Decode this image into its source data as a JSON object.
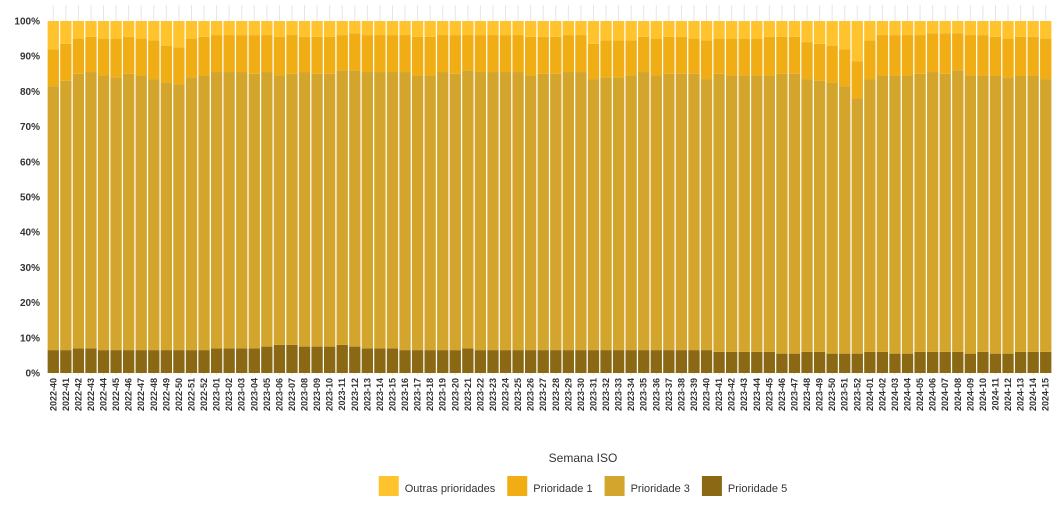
{
  "chart_data": {
    "type": "bar",
    "stacked": true,
    "normalized": true,
    "title": "",
    "xlabel": "Semana ISO",
    "ylabel": "",
    "ylim": [
      0,
      100
    ],
    "y_ticks": [
      "0%",
      "10%",
      "20%",
      "30%",
      "40%",
      "50%",
      "60%",
      "70%",
      "80%",
      "90%",
      "100%"
    ],
    "grid": "vertical",
    "legend_position": "bottom",
    "categories": [
      "2022-40",
      "2022-41",
      "2022-42",
      "2022-43",
      "2022-44",
      "2022-45",
      "2022-46",
      "2022-47",
      "2022-48",
      "2022-49",
      "2022-50",
      "2022-51",
      "2022-52",
      "2023-01",
      "2023-02",
      "2023-03",
      "2023-04",
      "2023-05",
      "2023-06",
      "2023-07",
      "2023-08",
      "2023-09",
      "2023-10",
      "2023-11",
      "2023-12",
      "2023-13",
      "2023-14",
      "2023-15",
      "2023-16",
      "2023-17",
      "2023-18",
      "2023-19",
      "2023-20",
      "2023-21",
      "2023-22",
      "2023-23",
      "2023-24",
      "2023-25",
      "2023-26",
      "2023-27",
      "2023-28",
      "2023-29",
      "2023-30",
      "2023-31",
      "2023-32",
      "2023-33",
      "2023-34",
      "2023-35",
      "2023-36",
      "2023-37",
      "2023-38",
      "2023-39",
      "2023-40",
      "2023-41",
      "2023-42",
      "2023-43",
      "2023-44",
      "2023-45",
      "2023-46",
      "2023-47",
      "2023-48",
      "2023-49",
      "2023-50",
      "2023-51",
      "2023-52",
      "2024-01",
      "2024-02",
      "2024-03",
      "2024-04",
      "2024-05",
      "2024-06",
      "2024-07",
      "2024-08",
      "2024-09",
      "2024-10",
      "2024-11",
      "2024-12",
      "2024-13",
      "2024-14",
      "2024-15"
    ],
    "series": [
      {
        "name": "Prioridade 5",
        "color": "#8B6914",
        "values": [
          6.5,
          6.5,
          7,
          7,
          6.5,
          6.5,
          6.5,
          6.5,
          6.5,
          6.5,
          6.5,
          6.5,
          6.5,
          7,
          7,
          7,
          7,
          7.5,
          8,
          8,
          7.5,
          7.5,
          7.5,
          8,
          7.5,
          7,
          7,
          7,
          6.5,
          6.5,
          6.5,
          6.5,
          6.5,
          7,
          6.5,
          6.5,
          6.5,
          6.5,
          6.5,
          6.5,
          6.5,
          6.5,
          6.5,
          6.5,
          6.5,
          6.5,
          6.5,
          6.5,
          6.5,
          6.5,
          6.5,
          6.5,
          6.5,
          6,
          6,
          6,
          6,
          6,
          5.5,
          5.5,
          6,
          6,
          5.5,
          5.5,
          5.5,
          6,
          6,
          5.5,
          5.5,
          6,
          6,
          6,
          6,
          5.5,
          6,
          5.5,
          5.5,
          6,
          6,
          6
        ]
      },
      {
        "name": "Prioridade 3",
        "color": "#D4A52C",
        "values": [
          75,
          76.5,
          78,
          78.5,
          78,
          77.5,
          78.5,
          78,
          77,
          76,
          75.5,
          77.5,
          78,
          78.5,
          78.5,
          78.5,
          78,
          78,
          76.5,
          77,
          78,
          77.5,
          77.5,
          78,
          78.5,
          78.5,
          78.5,
          78.5,
          79,
          78,
          78,
          79,
          78.5,
          79,
          79,
          79,
          79,
          79,
          78,
          78.5,
          78.5,
          79,
          79,
          77,
          77.5,
          77.5,
          78,
          79,
          78,
          78.5,
          78.5,
          78.5,
          77,
          79,
          78.5,
          78.5,
          78.5,
          78.5,
          79.5,
          79.5,
          77.5,
          77,
          77,
          76,
          72.5,
          77.5,
          78.5,
          79,
          79,
          79,
          79.5,
          79,
          80,
          79,
          78.5,
          79,
          78.5,
          78.5,
          78.5,
          77.5
        ]
      },
      {
        "name": "Prioridade 1",
        "color": "#F0AD14",
        "values": [
          10.5,
          10.5,
          10,
          10,
          10.5,
          11,
          10.5,
          10.5,
          11,
          10.5,
          10.5,
          11,
          11,
          10.5,
          10.5,
          10.5,
          11,
          10.5,
          11,
          11,
          10,
          10.5,
          10.5,
          10,
          10.5,
          10.5,
          10.5,
          10.5,
          10.5,
          11,
          11,
          10.5,
          11,
          10,
          10.5,
          10.5,
          10.5,
          10.5,
          11,
          10.5,
          10.5,
          10.5,
          10.5,
          10,
          10.5,
          10.5,
          10,
          10,
          10.5,
          10.5,
          10.5,
          10,
          11,
          10,
          10.5,
          10.5,
          10.5,
          11,
          10.5,
          10.5,
          10.5,
          10.5,
          10.5,
          10.5,
          10.5,
          11,
          11.5,
          11.5,
          11.5,
          11,
          11,
          11.5,
          10.5,
          11.5,
          11.5,
          11,
          11,
          11,
          11,
          11.5
        ]
      },
      {
        "name": "Outras prioridades",
        "color": "#FFC32E",
        "values": [
          8,
          6.5,
          5,
          4.5,
          5,
          5,
          4.5,
          5,
          5.5,
          7,
          7.5,
          5,
          4.5,
          4,
          4,
          4,
          4,
          4,
          4.5,
          4,
          4.5,
          4.5,
          4.5,
          4,
          3.5,
          4,
          4,
          4,
          4,
          4.5,
          4.5,
          4,
          4,
          4,
          4,
          4,
          4,
          4,
          4.5,
          4.5,
          4.5,
          4,
          4,
          6.5,
          5.5,
          5.5,
          5.5,
          4.5,
          5,
          4.5,
          4.5,
          5,
          5.5,
          5,
          5,
          5,
          5,
          4.5,
          4.5,
          4.5,
          6,
          6.5,
          7,
          8,
          11.5,
          5.5,
          4,
          4,
          4,
          4,
          3.5,
          3.5,
          3.5,
          4,
          4,
          4.5,
          5,
          4.5,
          4.5,
          5
        ]
      }
    ]
  }
}
